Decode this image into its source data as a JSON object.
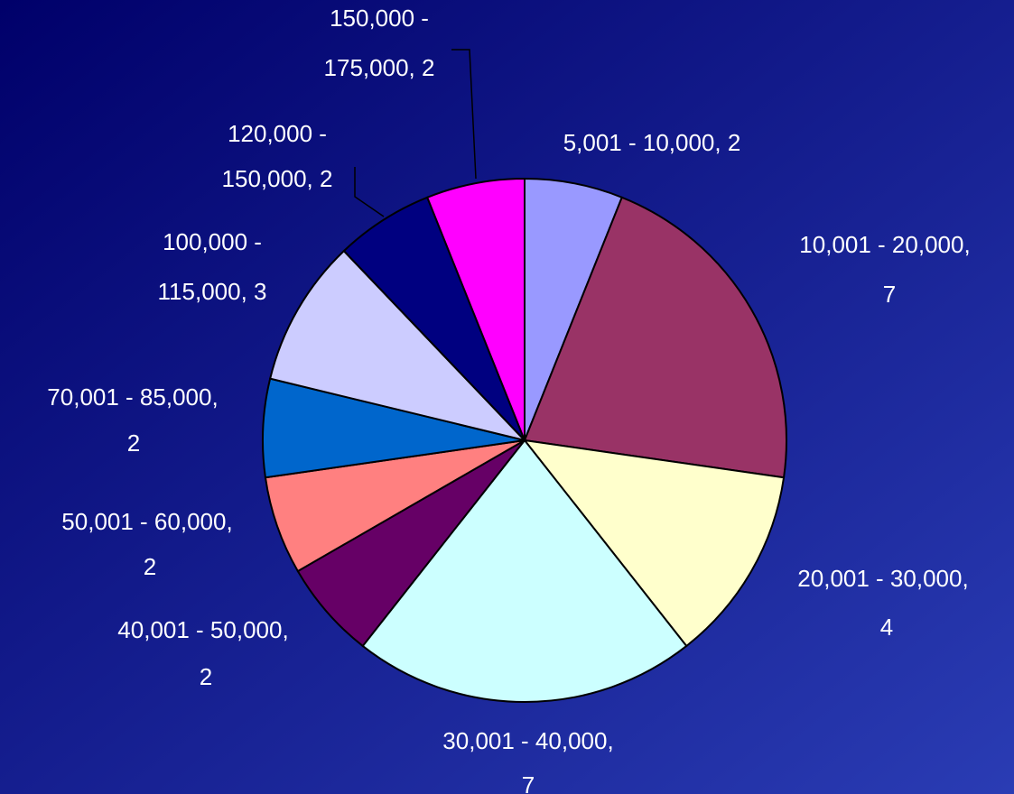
{
  "chart_data": {
    "type": "pie",
    "values": [
      2,
      7,
      4,
      7,
      2,
      2,
      2,
      3,
      2,
      2
    ],
    "value_labels": [
      [
        "5,001 - 10,000, 2"
      ],
      [
        "10,001 - 20,000,",
        "7"
      ],
      [
        "20,001 - 30,000,",
        "4"
      ],
      [
        "30,001 - 40,000,",
        "7"
      ],
      [
        "40,001 - 50,000,",
        "2"
      ],
      [
        "50,001 - 60,000,",
        "2"
      ],
      [
        "70,001 - 85,000,",
        "2"
      ],
      [
        "100,000 -",
        "115,000, 3"
      ],
      [
        "120,000 -",
        "150,000, 2"
      ],
      [
        "150,000 -",
        "175,000, 2"
      ]
    ],
    "colors": [
      "#9999ff",
      "#993366",
      "#ffffcc",
      "#ccffff",
      "#660066",
      "#ff8080",
      "#0066cc",
      "#ccccff",
      "#000080",
      "#ff00ff"
    ]
  }
}
